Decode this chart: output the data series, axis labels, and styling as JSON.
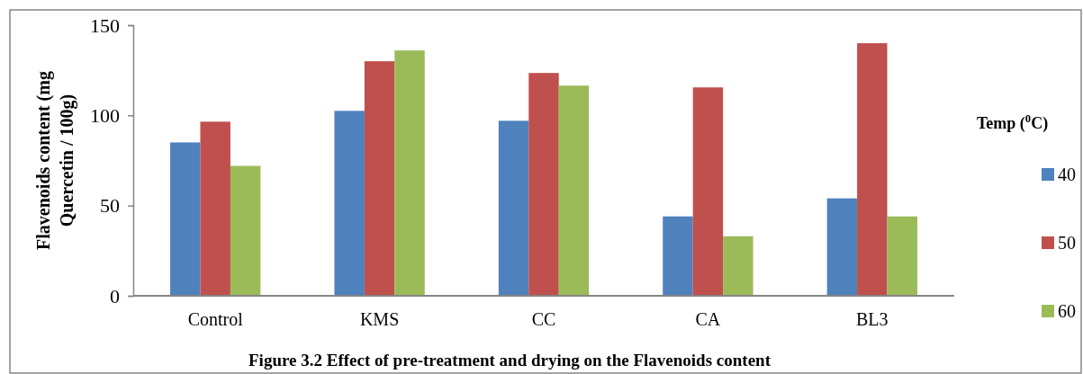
{
  "chart_data": {
    "type": "bar",
    "title": "Figure 3.2 Effect of pre-treatment and drying on the Flavenoids content",
    "ylabel": "Flavenoids content (mg Quercetin / 100g)",
    "legend_title": "Temp ($^{0}$C)",
    "categories": [
      "Control",
      "KMS",
      "CC",
      "CA",
      "BL3"
    ],
    "series": [
      {
        "name": "40",
        "color": "#4f81bd",
        "values": [
          85,
          102.5,
          97,
          44,
          54
        ]
      },
      {
        "name": "50",
        "color": "#c0504d",
        "values": [
          96.5,
          130,
          123.5,
          115.5,
          140
        ]
      },
      {
        "name": "60",
        "color": "#9bbb59",
        "values": [
          72,
          136,
          116.5,
          33,
          44
        ]
      }
    ],
    "ylim": [
      0,
      150
    ],
    "yticks": [
      0,
      50,
      100,
      150
    ],
    "grid": false,
    "legend": "right"
  }
}
